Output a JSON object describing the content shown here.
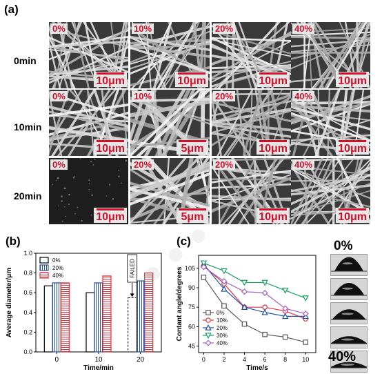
{
  "panel_a": {
    "label": "(a)",
    "rows": [
      {
        "label": "0min",
        "tiles": [
          {
            "conc": "0%",
            "scale": "10μm",
            "density": 0.85,
            "thick": 0.35
          },
          {
            "conc": "10%",
            "scale": "10μm",
            "density": 0.6,
            "thick": 0.45
          },
          {
            "conc": "20%",
            "scale": "10μm",
            "density": 0.6,
            "thick": 0.45
          },
          {
            "conc": "40%",
            "scale": "10μm",
            "density": 0.7,
            "thick": 0.4
          }
        ]
      },
      {
        "label": "10min",
        "tiles": [
          {
            "conc": "0%",
            "scale": "10μm",
            "density": 0.6,
            "thick": 0.5
          },
          {
            "conc": "10%",
            "scale": "5μm",
            "density": 0.4,
            "thick": 0.9
          },
          {
            "conc": "20%",
            "scale": "10μm",
            "density": 0.55,
            "thick": 0.5
          },
          {
            "conc": "40%",
            "scale": "10μm",
            "density": 0.6,
            "thick": 0.45
          }
        ]
      },
      {
        "label": "20min",
        "tiles": [
          {
            "conc": "0%",
            "scale": "10μm",
            "density": 0.0,
            "thick": 0.0
          },
          {
            "conc": "20%",
            "scale": "5μm",
            "density": 0.45,
            "thick": 0.8
          },
          {
            "conc": "20%",
            "scale": "10μm",
            "density": 0.6,
            "thick": 0.45
          },
          {
            "conc": "40%",
            "scale": "10μm",
            "density": 0.7,
            "thick": 0.4
          }
        ]
      }
    ]
  },
  "panel_b_label": "(b)",
  "panel_c_label": "(c)",
  "droplets": {
    "top_label": "0%",
    "bottom_label": "40%",
    "levels": [
      0.9,
      0.75,
      0.55,
      0.3,
      0.15
    ]
  },
  "chart_data": [
    {
      "type": "bar",
      "categories": [
        "0",
        "10",
        "20"
      ],
      "xlabel": "Time/min",
      "ylabel": "Average diameter/μm",
      "ylim": [
        0,
        1.0
      ],
      "yticks": [
        "0.0",
        "0.2",
        "0.4",
        "0.6",
        "0.8",
        "1.0"
      ],
      "legend_position": "top-left",
      "series": [
        {
          "name": "0%",
          "values": [
            0.67,
            0.6,
            null
          ],
          "color": "#000000",
          "fill": "none"
        },
        {
          "name": "20%",
          "values": [
            0.7,
            0.7,
            0.72
          ],
          "color": "#1f4ea8",
          "fill": "vertical-lines"
        },
        {
          "name": "40%",
          "values": [
            0.7,
            0.77,
            0.8
          ],
          "color": "#e0303a",
          "fill": "horizontal-lines"
        }
      ],
      "annotation": {
        "text": "FAILED",
        "category": "20",
        "series": "0%",
        "value": 0.55
      }
    },
    {
      "type": "line",
      "x": [
        0,
        2,
        4,
        6,
        8,
        10
      ],
      "xlabel": "Time/s",
      "ylabel": "Contant angle/degrees",
      "xlim": [
        -0.5,
        11
      ],
      "ylim": [
        40,
        115
      ],
      "xticks": [
        0,
        2,
        4,
        6,
        8,
        10
      ],
      "yticks": [
        45,
        60,
        75,
        90,
        105
      ],
      "legend_position": "bottom-left",
      "series": [
        {
          "name": "0%",
          "values": [
            98,
            76,
            62,
            54,
            52,
            48
          ],
          "color": "#555555",
          "marker": "square"
        },
        {
          "name": "10%",
          "values": [
            107,
            93,
            75,
            75,
            72,
            66
          ],
          "color": "#e0303a",
          "marker": "circle"
        },
        {
          "name": "20%",
          "values": [
            108,
            89,
            75,
            71,
            68,
            68
          ],
          "color": "#1f4ea8",
          "marker": "triangle-up"
        },
        {
          "name": "30%",
          "values": [
            109,
            103,
            94,
            94,
            88,
            82
          ],
          "color": "#18a060",
          "marker": "triangle-down"
        },
        {
          "name": "40%",
          "values": [
            106,
            95,
            87,
            86,
            74,
            70
          ],
          "color": "#a060c0",
          "marker": "diamond"
        }
      ]
    }
  ]
}
